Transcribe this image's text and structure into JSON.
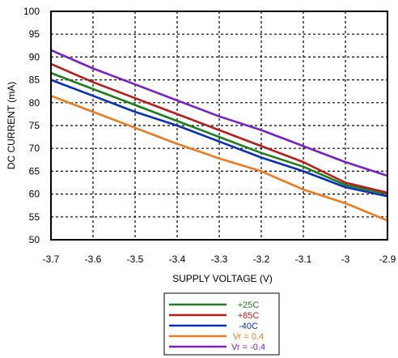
{
  "chart_data": {
    "type": "line",
    "xlabel": "SUPPLY VOLTAGE (V)",
    "ylabel": "DC CURRENT (mA)",
    "xlim": [
      -3.7,
      -2.9
    ],
    "ylim": [
      50,
      100
    ],
    "x_ticks": [
      "-3.7",
      "-3.6",
      "-3.5",
      "-3.4",
      "-3.3",
      "-3.2",
      "-3.1",
      "-3",
      "-2.9"
    ],
    "y_ticks": [
      "100",
      "95",
      "90",
      "85",
      "80",
      "75",
      "70",
      "65",
      "60",
      "55",
      "50"
    ],
    "grid": true,
    "grid_style": "dotted",
    "legend_position": "bottom-center",
    "series": [
      {
        "name": "+25C",
        "color": "#1e7d1e",
        "x": [
          -3.7,
          -3.6,
          -3.5,
          -3.4,
          -3.3,
          -3.2,
          -3.1,
          -3.0,
          -2.9
        ],
        "y": [
          86.5,
          83.0,
          79.5,
          76.0,
          72.5,
          69.0,
          66.0,
          62.0,
          60.0
        ]
      },
      {
        "name": "+85C",
        "color": "#b81d1d",
        "x": [
          -3.7,
          -3.6,
          -3.5,
          -3.4,
          -3.3,
          -3.2,
          -3.1,
          -3.0,
          -2.9
        ],
        "y": [
          88.5,
          84.5,
          81.0,
          77.5,
          74.0,
          70.5,
          67.0,
          62.5,
          60.3
        ]
      },
      {
        "name": "-40C",
        "color": "#0a2fb8",
        "x": [
          -3.7,
          -3.6,
          -3.5,
          -3.4,
          -3.3,
          -3.2,
          -3.1,
          -3.0,
          -2.9
        ],
        "y": [
          85.0,
          81.5,
          78.0,
          75.0,
          71.5,
          68.0,
          65.0,
          61.5,
          59.5
        ]
      },
      {
        "name": "Vr = 0.4",
        "color": "#ef7a1e",
        "x": [
          -3.7,
          -3.6,
          -3.5,
          -3.4,
          -3.3,
          -3.2,
          -3.1,
          -3.0,
          -2.9
        ],
        "y": [
          81.5,
          78.0,
          74.5,
          71.0,
          67.8,
          65.0,
          61.0,
          58.0,
          54.2
        ]
      },
      {
        "name": "Vr = -0.4",
        "color": "#7a20c8",
        "x": [
          -3.7,
          -3.6,
          -3.5,
          -3.4,
          -3.3,
          -3.2,
          -3.1,
          -3.0,
          -2.9
        ],
        "y": [
          91.5,
          87.5,
          84.0,
          80.5,
          77.0,
          74.0,
          70.5,
          67.0,
          64.0
        ]
      }
    ]
  }
}
